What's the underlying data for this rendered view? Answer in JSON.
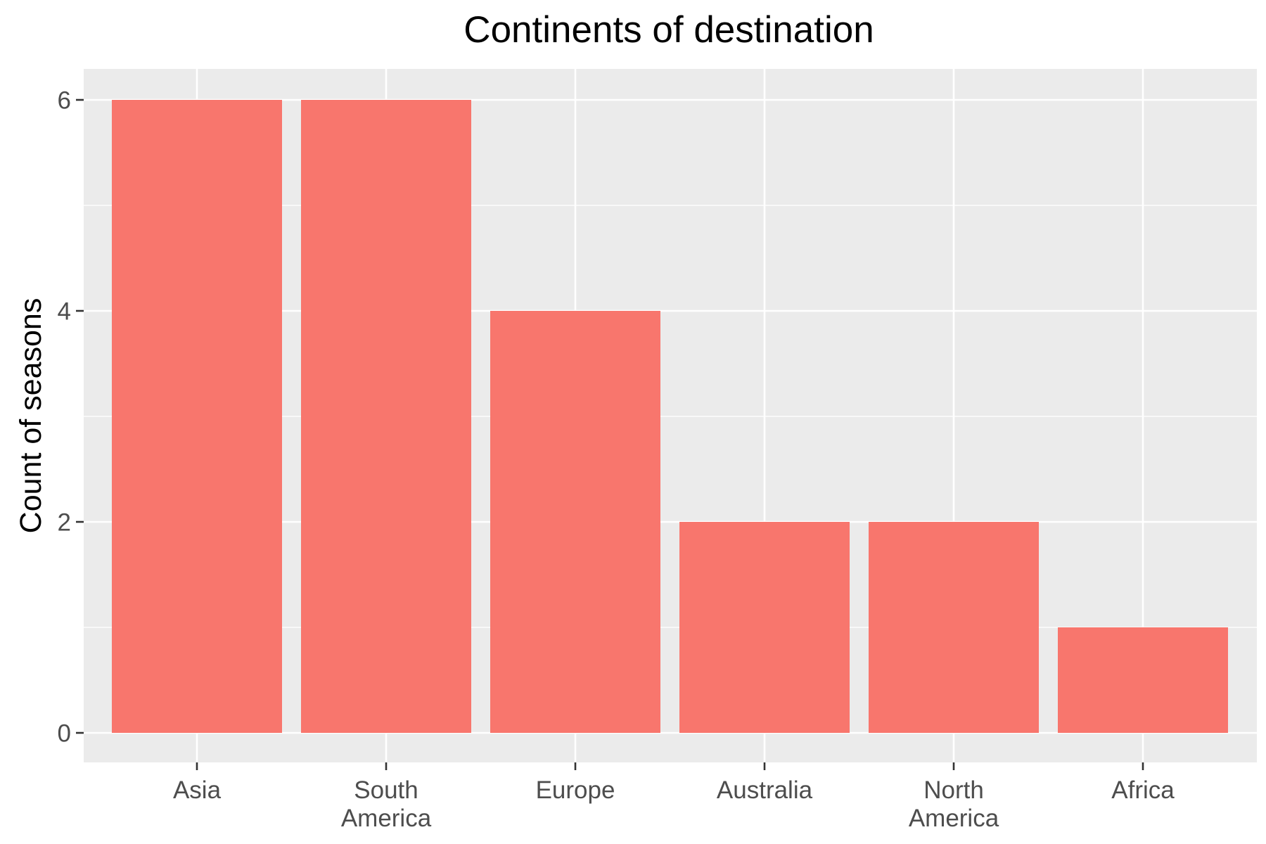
{
  "chart_data": {
    "type": "bar",
    "title": "Continents of destination",
    "xlabel": "",
    "ylabel": "Count of seasons",
    "categories": [
      [
        "Asia"
      ],
      [
        "South",
        "America"
      ],
      [
        "Europe"
      ],
      [
        "Australia"
      ],
      [
        "North",
        "America"
      ],
      [
        "Africa"
      ]
    ],
    "values": [
      6,
      6,
      4,
      2,
      2,
      1
    ],
    "ylim": [
      0,
      6.3
    ],
    "y_ticks": [
      0,
      2,
      4,
      6
    ],
    "y_tick_labels": [
      "0",
      "2",
      "4",
      "6"
    ],
    "grid": true,
    "legend": "none",
    "colors": {
      "bar": "#F8766D",
      "panel_background": "#EBEBEB",
      "grid_line": "#FFFFFF",
      "tick_mark": "#333333"
    }
  }
}
